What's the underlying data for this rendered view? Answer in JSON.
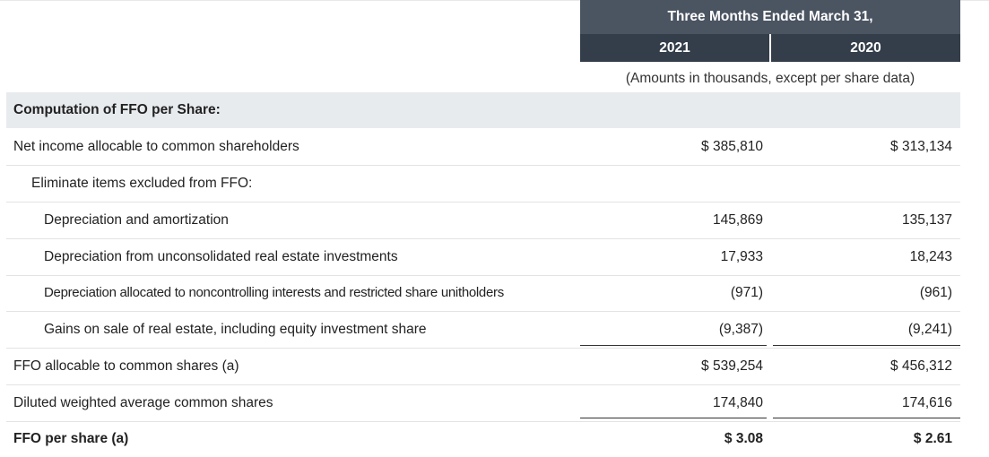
{
  "header": {
    "period": "Three Months Ended March 31,",
    "years": [
      "2021",
      "2020"
    ],
    "units": "(Amounts in thousands, except per share data)"
  },
  "table": {
    "section_title": "Computation of FFO per Share:",
    "rows": [
      {
        "label": "Net income allocable to common shareholders",
        "v2021": "$ 385,810",
        "v2020": "$ 313,134"
      },
      {
        "label": "Eliminate items excluded from FFO:",
        "v2021": "",
        "v2020": ""
      },
      {
        "label": "Depreciation and amortization",
        "v2021": "145,869",
        "v2020": "135,137"
      },
      {
        "label": "Depreciation from unconsolidated real estate investments",
        "v2021": "17,933",
        "v2020": "18,243"
      },
      {
        "label": "Depreciation allocated to noncontrolling interests and restricted share unitholders",
        "v2021": "(971)",
        "v2020": "(961)"
      },
      {
        "label": "Gains on sale of real estate, including equity investment share",
        "v2021": "(9,387)",
        "v2020": "(9,241)"
      },
      {
        "label": "FFO allocable to common shares (a)",
        "v2021": "$ 539,254",
        "v2020": "$ 456,312"
      },
      {
        "label": "Diluted weighted average common shares",
        "v2021": "174,840",
        "v2020": "174,616"
      },
      {
        "label": "FFO per share (a)",
        "v2021": "$ 3.08",
        "v2020": "$ 2.61"
      }
    ]
  }
}
